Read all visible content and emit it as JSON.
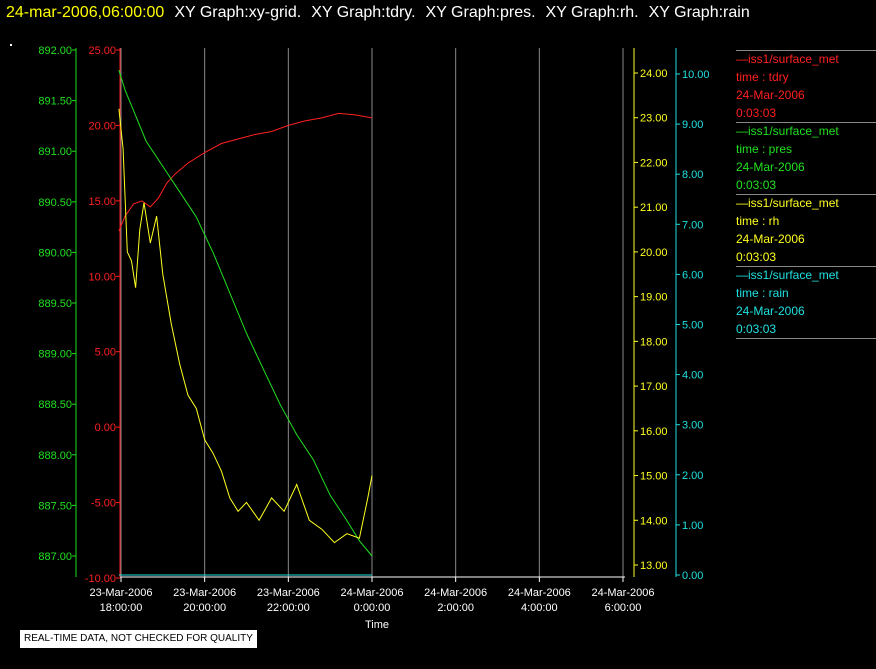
{
  "title": {
    "timestamp": "24-mar-2006,06:00:00",
    "segments": [
      "XY Graph:xy-grid.",
      "XY Graph:tdry.",
      "XY Graph:pres.",
      "XY Graph:rh.",
      "XY Graph:rain"
    ]
  },
  "footer_note": "REAL-TIME DATA, NOT CHECKED FOR QUALITY",
  "legend": [
    {
      "line": "—iss1/surface_met",
      "field": "time : tdry",
      "date": "24-Mar-2006",
      "time": "0:03:03",
      "color": "#ff2020"
    },
    {
      "line": "—iss1/surface_met",
      "field": "time : pres",
      "date": "24-Mar-2006",
      "time": "0:03:03",
      "color": "#20e020"
    },
    {
      "line": "—iss1/surface_met",
      "field": "time : rh",
      "date": "24-Mar-2006",
      "time": "0:03:03",
      "color": "#ffff20"
    },
    {
      "line": "—iss1/surface_met",
      "field": "time : rain",
      "date": "24-Mar-2006",
      "time": "0:03:03",
      "color": "#20e0e0"
    }
  ],
  "chart_data": {
    "type": "line",
    "xlabel": "Time",
    "x_ticks": [
      {
        "date": "23-Mar-2006",
        "time": "18:00:00"
      },
      {
        "date": "23-Mar-2006",
        "time": "20:00:00"
      },
      {
        "date": "23-Mar-2006",
        "time": "22:00:00"
      },
      {
        "date": "24-Mar-2006",
        "time": "0:00:00"
      },
      {
        "date": "24-Mar-2006",
        "time": "2:00:00"
      },
      {
        "date": "24-Mar-2006",
        "time": "4:00:00"
      },
      {
        "date": "24-Mar-2006",
        "time": "6:00:00"
      }
    ],
    "xlim_hours": [
      18,
      30
    ],
    "grid": true,
    "legend_position": "right",
    "axes": {
      "pres": {
        "color": "#20e020",
        "side": "left-outer",
        "ylim": [
          886.75,
          892.0
        ],
        "ticks": [
          "892.00",
          "891.50",
          "891.00",
          "890.50",
          "890.00",
          "889.50",
          "889.00",
          "888.50",
          "888.00",
          "887.50",
          "887.00"
        ]
      },
      "tdry": {
        "color": "#ff2020",
        "side": "left-inner",
        "ylim": [
          -10,
          25
        ],
        "ticks": [
          "25.00",
          "20.00",
          "15.00",
          "10.00",
          "5.00",
          "0.00",
          "-5.00",
          "-10.00"
        ]
      },
      "rh": {
        "color": "#ffff20",
        "side": "right-inner",
        "ylim": [
          12.8,
          24.5
        ],
        "ticks": [
          "24.00",
          "23.00",
          "22.00",
          "21.00",
          "20.00",
          "19.00",
          "18.00",
          "17.00",
          "16.00",
          "15.00",
          "14.00",
          "13.00"
        ]
      },
      "rain": {
        "color": "#20e0e0",
        "side": "right-outer",
        "ylim": [
          0,
          10.5
        ],
        "ticks": [
          "10.00",
          "9.00",
          "8.00",
          "7.00",
          "6.00",
          "5.00",
          "4.00",
          "3.00",
          "2.00",
          "1.00",
          "0.00"
        ]
      }
    },
    "series": [
      {
        "name": "tdry",
        "axis": "tdry",
        "color": "#ff2020",
        "x": [
          17.95,
          18.1,
          18.3,
          18.5,
          18.7,
          18.9,
          19.1,
          19.3,
          19.6,
          20.0,
          20.4,
          20.8,
          21.2,
          21.6,
          22.0,
          22.4,
          22.8,
          23.2,
          23.6,
          24.0
        ],
        "y": [
          13.0,
          14.0,
          14.8,
          15.0,
          14.6,
          15.2,
          16.2,
          16.8,
          17.5,
          18.2,
          18.8,
          19.1,
          19.4,
          19.6,
          20.0,
          20.3,
          20.5,
          20.8,
          20.7,
          20.5
        ]
      },
      {
        "name": "pres",
        "axis": "pres",
        "color": "#20e020",
        "x": [
          17.95,
          18.1,
          18.3,
          18.6,
          19.0,
          19.4,
          19.8,
          20.2,
          20.6,
          21.0,
          21.4,
          21.8,
          22.2,
          22.6,
          23.0,
          23.4,
          23.7,
          24.0
        ],
        "y": [
          891.8,
          891.6,
          891.4,
          891.1,
          890.85,
          890.6,
          890.35,
          890.0,
          889.6,
          889.2,
          888.85,
          888.5,
          888.2,
          887.95,
          887.6,
          887.35,
          887.15,
          887.0
        ]
      },
      {
        "name": "rh",
        "axis": "rh",
        "color": "#ffff20",
        "x": [
          17.95,
          18.05,
          18.15,
          18.25,
          18.35,
          18.45,
          18.55,
          18.7,
          18.85,
          19.0,
          19.2,
          19.4,
          19.6,
          19.8,
          20.0,
          20.2,
          20.4,
          20.6,
          20.8,
          21.0,
          21.3,
          21.6,
          21.9,
          22.2,
          22.5,
          22.8,
          23.1,
          23.4,
          23.7,
          23.9,
          24.0
        ],
        "y": [
          23.2,
          22.3,
          20.0,
          19.8,
          19.2,
          20.5,
          21.1,
          20.2,
          20.8,
          19.5,
          18.4,
          17.5,
          16.8,
          16.5,
          15.8,
          15.5,
          15.1,
          14.5,
          14.2,
          14.4,
          14.0,
          14.5,
          14.2,
          14.8,
          14.0,
          13.8,
          13.5,
          13.7,
          13.6,
          14.5,
          15.0
        ]
      },
      {
        "name": "rain",
        "axis": "rain",
        "color": "#20e0e0",
        "x": [
          17.95,
          24.0
        ],
        "y": [
          0.0,
          0.0
        ]
      }
    ]
  }
}
